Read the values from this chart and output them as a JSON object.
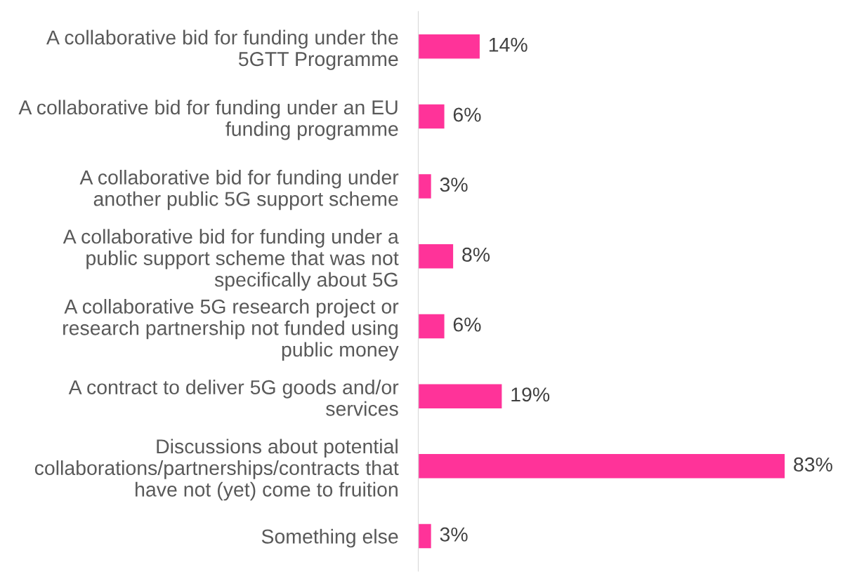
{
  "chart_data": {
    "type": "bar",
    "orientation": "horizontal",
    "categories": [
      "A collaborative bid for funding under the\n5GTT Programme",
      "A collaborative bid for funding under an EU\nfunding programme",
      "A collaborative bid for funding under\nanother public 5G support scheme",
      "A collaborative bid for funding under a\npublic support scheme that was not\nspecifically about 5G",
      "A collaborative 5G research project or\nresearch partnership not funded using\npublic money",
      "A contract to deliver 5G goods and/or\nservices",
      "Discussions about potential\ncollaborations/partnerships/contracts that\nhave not (yet) come to fruition",
      "Something else"
    ],
    "values": [
      14,
      6,
      3,
      8,
      6,
      19,
      83,
      3
    ],
    "value_labels": [
      "14%",
      "6%",
      "3%",
      "8%",
      "6%",
      "19%",
      "83%",
      "3%"
    ],
    "color": "#ff3399"
  }
}
